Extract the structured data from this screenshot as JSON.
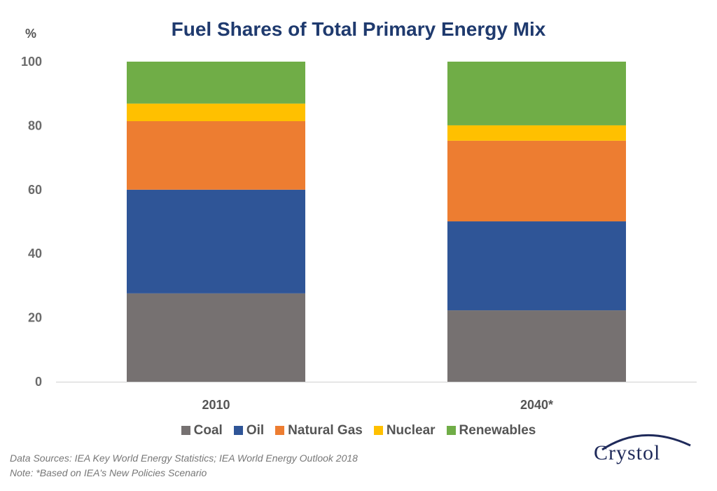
{
  "chart_data": {
    "type": "bar",
    "stacked": true,
    "title": "Fuel Shares of Total Primary Energy Mix",
    "ylabel": "%",
    "xlabel": "",
    "ylim": [
      0,
      100
    ],
    "yticks": [
      0,
      20,
      40,
      60,
      80,
      100
    ],
    "grid": false,
    "legend_position": "bottom",
    "categories": [
      "2010",
      "2040*"
    ],
    "series": [
      {
        "name": "Coal",
        "color": "#767171",
        "values": [
          27.6,
          22.3
        ]
      },
      {
        "name": "Oil",
        "color": "#2f5597",
        "values": [
          32.4,
          27.8
        ]
      },
      {
        "name": "Natural Gas",
        "color": "#ed7d31",
        "values": [
          21.4,
          25.2
        ]
      },
      {
        "name": "Nuclear",
        "color": "#ffc000",
        "values": [
          5.5,
          4.8
        ]
      },
      {
        "name": "Renewables",
        "color": "#70ad47",
        "values": [
          13.1,
          19.9
        ]
      }
    ]
  },
  "notes": {
    "sources": "Data Sources: IEA Key World Energy Statistics;  IEA World Energy Outlook 2018",
    "note": "Note: *Based on IEA's New Policies Scenario"
  },
  "logo": {
    "text": "Crystol"
  }
}
